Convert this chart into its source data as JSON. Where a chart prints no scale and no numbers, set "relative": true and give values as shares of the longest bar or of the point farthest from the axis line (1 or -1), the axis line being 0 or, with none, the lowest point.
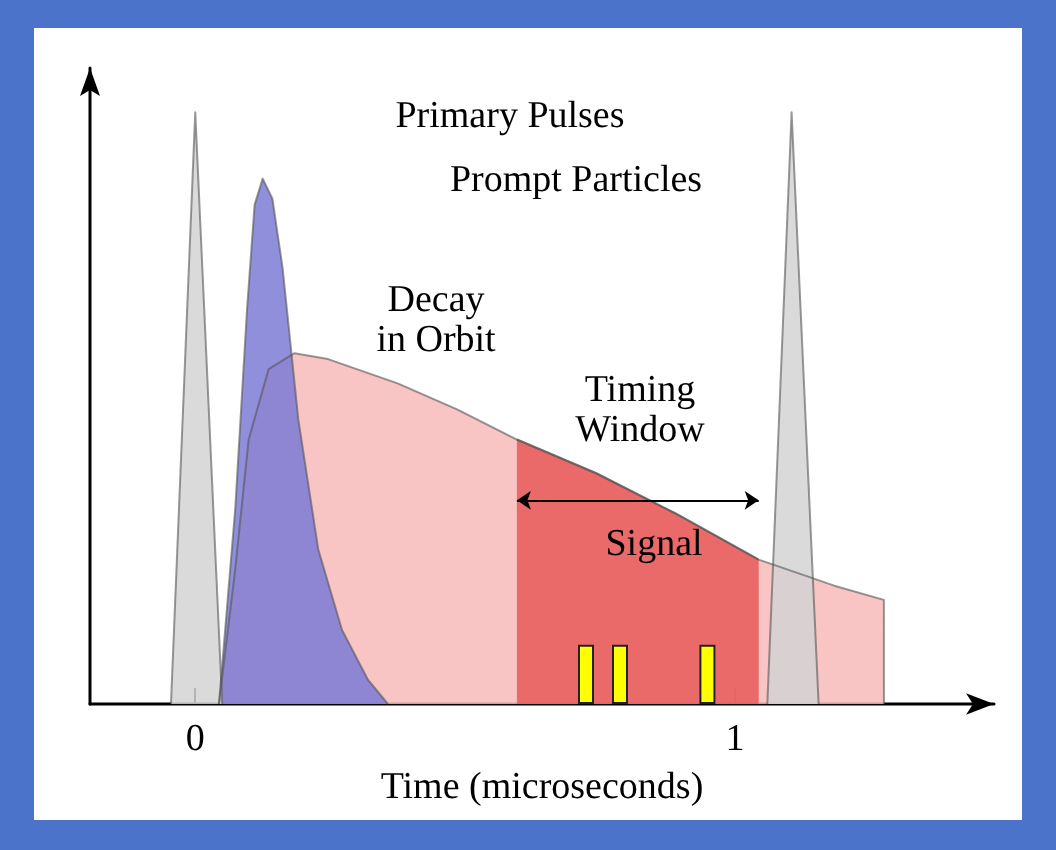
{
  "chart_data": {
    "type": "area",
    "relative": true,
    "xlabel": "Time (microseconds)",
    "xlim": [
      -0.195,
      1.48
    ],
    "xticks": [
      0,
      1
    ],
    "marker": "none",
    "series": [
      {
        "color": "#f7baba",
        "x": [
          0.044,
          0.074,
          0.099,
          0.136,
          0.184,
          0.246,
          0.375,
          0.485,
          0.596,
          0.743,
          0.89,
          1.044,
          1.184,
          1.276,
          1.2761
        ],
        "values": [
          0,
          0.227,
          0.447,
          0.566,
          0.593,
          0.583,
          0.542,
          0.498,
          0.447,
          0.39,
          0.322,
          0.244,
          0.2,
          0.176,
          0
        ]
      },
      {
        "color": "#e85a5a",
        "x": [
          0.596,
          0.743,
          0.89,
          1.044
        ],
        "values": [
          0.447,
          0.39,
          0.322,
          0.244
        ]
      },
      {
        "color": "#7b7bd6",
        "x": [
          0.044,
          0.074,
          0.096,
          0.11,
          0.125,
          0.143,
          0.162,
          0.191,
          0.228,
          0.272,
          0.32,
          0.357
        ],
        "values": [
          0,
          0.329,
          0.668,
          0.844,
          0.888,
          0.854,
          0.736,
          0.481,
          0.261,
          0.125,
          0.041,
          0
        ]
      },
      {
        "color": "#d4d4d4",
        "x": [
          -0.045,
          0,
          0.05,
          0.5,
          1.06,
          1.105,
          1.155
        ],
        "values": [
          0,
          1,
          0,
          null,
          0,
          1,
          0
        ]
      },
      {
        "type": "bar",
        "color": "#ffff00",
        "x": [
          0.724,
          0.787,
          0.949
        ],
        "values": [
          0.1,
          0.1,
          0.1
        ]
      }
    ],
    "annotations": [
      "Primary Pulses",
      "Prompt Particles",
      "Decay\nin Orbit",
      "Timing\nWindow",
      "Signal"
    ]
  }
}
